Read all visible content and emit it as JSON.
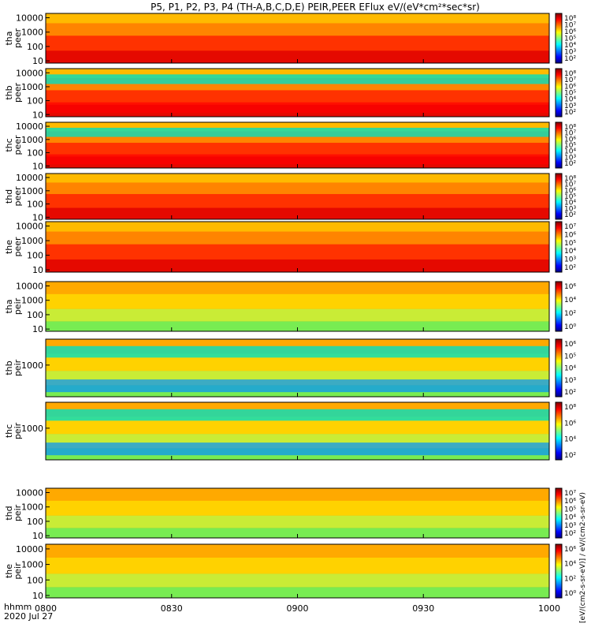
{
  "title": "P5, P1, P2, P3, P4 (TH-A,B,C,D,E) PEIR,PEER EFlux eV/(eV*cm²*sec*sr)",
  "x_axis_label": "hhmm",
  "date_label": "2020 Jul 27",
  "colorbar_unit_label": "[eV/(cm2-s-sr-eV)] / eV/(cm2-s-sr-eV)",
  "colormap": [
    "#000080",
    "#0000ff",
    "#0080ff",
    "#00ffff",
    "#80ff80",
    "#ffff00",
    "#ff8000",
    "#ff0000",
    "#800000"
  ],
  "chart_data": [
    {
      "type": "heatmap",
      "panel": "tha-peer",
      "ylabel": [
        "tha",
        "peer"
      ],
      "yscale": "log",
      "ylim": [
        7,
        20000
      ],
      "yticks": [
        "10000",
        "1000",
        "100",
        "10"
      ],
      "xlim": [
        "0800",
        "1000"
      ],
      "xticks": [
        "0800",
        "0830",
        "0900",
        "0930",
        "1000"
      ],
      "colorbar_ticks": [
        "10⁸",
        "10⁷",
        "10⁶",
        "10⁵",
        "10⁴",
        "10³",
        "10²"
      ]
    },
    {
      "type": "heatmap",
      "panel": "thb-peer",
      "ylabel": [
        "thb",
        "peer"
      ],
      "yscale": "log",
      "ylim": [
        7,
        20000
      ],
      "yticks": [
        "10000",
        "1000",
        "100",
        "10"
      ],
      "xlim": [
        "0800",
        "1000"
      ],
      "xticks": [
        "0800",
        "0830",
        "0900",
        "0930",
        "1000"
      ],
      "colorbar_ticks": [
        "10⁸",
        "10⁷",
        "10⁶",
        "10⁵",
        "10⁴",
        "10³",
        "10²"
      ]
    },
    {
      "type": "heatmap",
      "panel": "thc-peer",
      "ylabel": [
        "thc",
        "peer"
      ],
      "yscale": "log",
      "ylim": [
        7,
        20000
      ],
      "yticks": [
        "10000",
        "1000",
        "100",
        "10"
      ],
      "xlim": [
        "0800",
        "1000"
      ],
      "xticks": [
        "0800",
        "0830",
        "0900",
        "0930",
        "1000"
      ],
      "colorbar_ticks": [
        "10⁸",
        "10⁷",
        "10⁶",
        "10⁵",
        "10⁴",
        "10³",
        "10²"
      ]
    },
    {
      "type": "heatmap",
      "panel": "thd-peer",
      "ylabel": [
        "thd",
        "peer"
      ],
      "yscale": "log",
      "ylim": [
        7,
        20000
      ],
      "yticks": [
        "10000",
        "1000",
        "100",
        "10"
      ],
      "xlim": [
        "0800",
        "1000"
      ],
      "xticks": [
        "0800",
        "0830",
        "0900",
        "0930",
        "1000"
      ],
      "colorbar_ticks": [
        "10⁸",
        "10⁷",
        "10⁶",
        "10⁵",
        "10⁴",
        "10³",
        "10²"
      ]
    },
    {
      "type": "heatmap",
      "panel": "the-peer",
      "ylabel": [
        "the",
        "peer"
      ],
      "yscale": "log",
      "ylim": [
        7,
        20000
      ],
      "yticks": [
        "10000",
        "1000",
        "100",
        "10"
      ],
      "xlim": [
        "0800",
        "1000"
      ],
      "xticks": [
        "0800",
        "0830",
        "0900",
        "0930",
        "1000"
      ],
      "colorbar_ticks": [
        "10⁷",
        "10⁶",
        "10⁵",
        "10⁴",
        "10³",
        "10²"
      ]
    },
    {
      "type": "heatmap",
      "panel": "tha-peir",
      "ylabel": [
        "tha",
        "peir"
      ],
      "yscale": "log",
      "ylim": [
        7,
        20000
      ],
      "yticks": [
        "10000",
        "1000",
        "100",
        "10"
      ],
      "xlim": [
        "0800",
        "1000"
      ],
      "xticks": [
        "0800",
        "0830",
        "0900",
        "0930",
        "1000"
      ],
      "colorbar_ticks": [
        "10⁶",
        "10⁴",
        "10²",
        "10⁰"
      ]
    },
    {
      "type": "heatmap",
      "panel": "thb-peir",
      "ylabel": [
        "thb",
        "peir"
      ],
      "yscale": "log",
      "ylim": [
        7,
        20000
      ],
      "yticks": [
        "1000"
      ],
      "xlim": [
        "0800",
        "1000"
      ],
      "xticks": [
        "0800",
        "0830",
        "0900",
        "0930",
        "1000"
      ],
      "colorbar_ticks": [
        "10⁶",
        "10⁵",
        "10⁴",
        "10³",
        "10²"
      ]
    },
    {
      "type": "heatmap",
      "panel": "thc-peir",
      "ylabel": [
        "thc",
        "peir"
      ],
      "yscale": "log",
      "ylim": [
        7,
        20000
      ],
      "yticks": [
        "1000"
      ],
      "xlim": [
        "0800",
        "1000"
      ],
      "xticks": [
        "0800",
        "0830",
        "0900",
        "0930",
        "1000"
      ],
      "colorbar_ticks": [
        "10⁸",
        "10⁶",
        "10⁴",
        "10²"
      ]
    },
    {
      "type": "heatmap",
      "panel": "thd-peir",
      "ylabel": [
        "thd",
        "peir"
      ],
      "yscale": "log",
      "ylim": [
        7,
        20000
      ],
      "yticks": [
        "10000",
        "1000",
        "100",
        "10"
      ],
      "xlim": [
        "0800",
        "1000"
      ],
      "xticks": [
        "0800",
        "0830",
        "0900",
        "0930",
        "1000"
      ],
      "colorbar_ticks": [
        "10⁷",
        "10⁶",
        "10⁵",
        "10⁴",
        "10³",
        "10²"
      ]
    },
    {
      "type": "heatmap",
      "panel": "the-peir",
      "ylabel": [
        "the",
        "peir"
      ],
      "yscale": "log",
      "ylim": [
        7,
        20000
      ],
      "yticks": [
        "10000",
        "1000",
        "100",
        "10"
      ],
      "xlim": [
        "0800",
        "1000"
      ],
      "xticks": [
        "0800",
        "0830",
        "0900",
        "0930",
        "1000"
      ],
      "colorbar_ticks": [
        "10⁶",
        "10⁴",
        "10²",
        "10⁰"
      ]
    }
  ]
}
